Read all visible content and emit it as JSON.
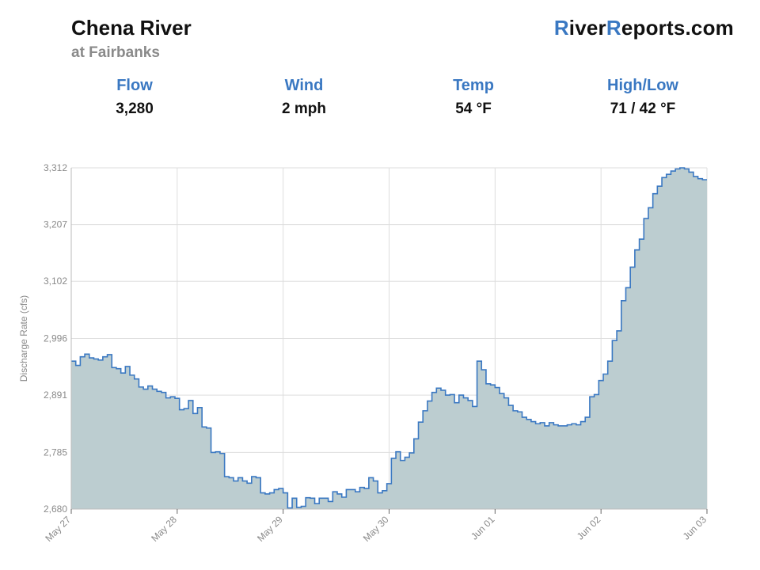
{
  "header": {
    "title": "Chena River",
    "subtitle": "at Fairbanks",
    "brand": {
      "part1": "R",
      "part2": "iver",
      "part3": "R",
      "part4": "eports.com"
    }
  },
  "stats": [
    {
      "label": "Flow",
      "value": "3,280"
    },
    {
      "label": "Wind",
      "value": "2 mph"
    },
    {
      "label": "Temp",
      "value": "54 °F"
    },
    {
      "label": "High/Low",
      "value": "71 / 42 °F"
    }
  ],
  "colors": {
    "accent": "#3a78c2",
    "line": "#3a78c2",
    "fill": "#bccdd0",
    "grid": "#dddddd"
  },
  "chart_data": {
    "type": "area",
    "step": true,
    "title": "",
    "ylabel": "Discharge Rate (cfs)",
    "xlabel": "",
    "ylim": [
      2680,
      3312
    ],
    "yticks": [
      2680,
      2785,
      2891,
      2996,
      3102,
      3207,
      3312
    ],
    "ytick_labels": [
      "2,680",
      "2,785",
      "2,891",
      "2,996",
      "3,102",
      "3,207",
      "3,312"
    ],
    "xlim": [
      0,
      6
    ],
    "xticks": [
      0,
      1,
      2,
      3,
      4,
      5,
      6
    ],
    "xtick_labels": [
      "May 27",
      "May 28",
      "May 29",
      "May 30",
      "Jun 01",
      "Jun 02",
      "Jun 03"
    ],
    "grid": true,
    "series": [
      {
        "values": [
          2954,
          2946,
          2962,
          2967,
          2960,
          2958,
          2956,
          2962,
          2966,
          2942,
          2940,
          2932,
          2944,
          2928,
          2921,
          2906,
          2902,
          2908,
          2902,
          2898,
          2896,
          2886,
          2888,
          2885,
          2864,
          2866,
          2881,
          2857,
          2868,
          2832,
          2830,
          2785,
          2786,
          2783,
          2740,
          2738,
          2732,
          2738,
          2732,
          2728,
          2740,
          2738,
          2710,
          2708,
          2710,
          2716,
          2718,
          2710,
          2682,
          2700,
          2683,
          2685,
          2701,
          2700,
          2690,
          2700,
          2700,
          2694,
          2712,
          2708,
          2702,
          2716,
          2716,
          2712,
          2720,
          2718,
          2738,
          2732,
          2710,
          2714,
          2727,
          2774,
          2786,
          2770,
          2776,
          2784,
          2810,
          2841,
          2862,
          2880,
          2896,
          2904,
          2900,
          2891,
          2892,
          2877,
          2891,
          2886,
          2881,
          2870,
          2954,
          2938,
          2912,
          2910,
          2905,
          2894,
          2886,
          2872,
          2862,
          2860,
          2850,
          2846,
          2842,
          2838,
          2840,
          2834,
          2840,
          2836,
          2834,
          2834,
          2836,
          2838,
          2836,
          2842,
          2850,
          2888,
          2892,
          2918,
          2930,
          2954,
          2992,
          3010,
          3066,
          3090,
          3128,
          3160,
          3180,
          3218,
          3238,
          3264,
          3278,
          3294,
          3300,
          3306,
          3310,
          3312,
          3310,
          3304,
          3296,
          3292,
          3290
        ]
      }
    ]
  }
}
